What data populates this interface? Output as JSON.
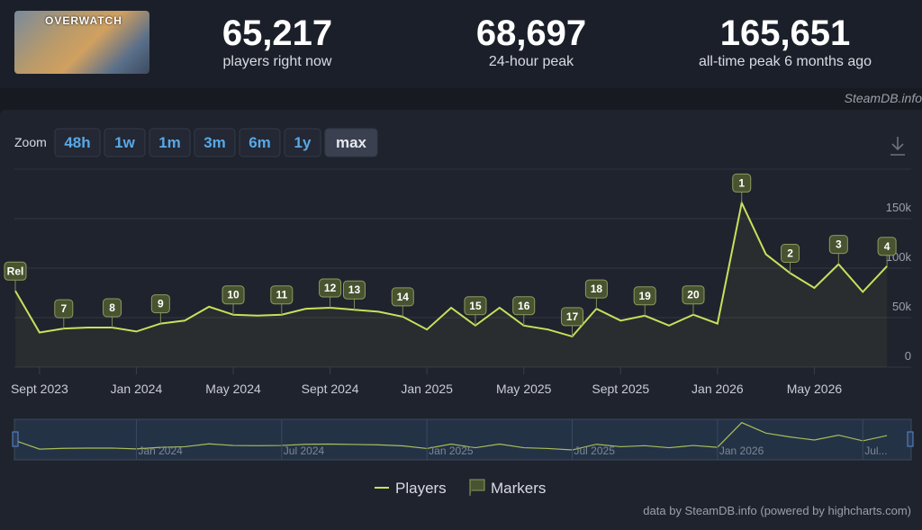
{
  "header": {
    "game_logo": "OVERWATCH",
    "stats": [
      {
        "value": "65,217",
        "label": "players right now"
      },
      {
        "value": "68,697",
        "label": "24-hour peak"
      },
      {
        "value": "165,651",
        "label": "all-time peak 6 months ago"
      }
    ],
    "source": "SteamDB.info"
  },
  "toolbar": {
    "zoom_label": "Zoom",
    "buttons": [
      "48h",
      "1w",
      "1m",
      "3m",
      "6m",
      "1y",
      "max"
    ],
    "active": "max"
  },
  "chart_data": {
    "type": "line",
    "x": [
      "2023-08",
      "2023-09",
      "2023-10",
      "2023-11",
      "2023-12",
      "2024-01",
      "2024-02",
      "2024-03",
      "2024-04",
      "2024-05",
      "2024-06",
      "2024-07",
      "2024-08",
      "2024-09",
      "2024-10",
      "2024-11",
      "2024-12",
      "2025-01",
      "2025-02",
      "2025-03",
      "2025-04",
      "2025-05",
      "2025-06",
      "2025-07",
      "2025-08",
      "2025-09",
      "2025-10",
      "2025-11",
      "2025-12",
      "2026-01",
      "2026-02",
      "2026-03",
      "2026-04",
      "2026-05",
      "2026-06",
      "2026-07",
      "2026-08"
    ],
    "series": [
      {
        "name": "Players",
        "color": "#c8e05c",
        "values": [
          77000,
          35000,
          39000,
          40000,
          40000,
          36000,
          44000,
          47000,
          61000,
          53000,
          52000,
          53000,
          59000,
          60000,
          58000,
          56000,
          51000,
          38000,
          60000,
          42000,
          60000,
          42000,
          38000,
          31000,
          59000,
          47000,
          52000,
          42000,
          53000,
          44000,
          166000,
          114000,
          95000,
          80000,
          104000,
          76000,
          102000
        ]
      }
    ],
    "markers_name": "Markers",
    "markers": [
      {
        "label": "Rel",
        "x": "2023-08"
      },
      {
        "label": "7",
        "x": "2023-10"
      },
      {
        "label": "8",
        "x": "2023-12"
      },
      {
        "label": "9",
        "x": "2024-02"
      },
      {
        "label": "10",
        "x": "2024-05"
      },
      {
        "label": "11",
        "x": "2024-07"
      },
      {
        "label": "12",
        "x": "2024-09"
      },
      {
        "label": "13",
        "x": "2024-10"
      },
      {
        "label": "14",
        "x": "2024-12"
      },
      {
        "label": "15",
        "x": "2025-03"
      },
      {
        "label": "16",
        "x": "2025-05"
      },
      {
        "label": "17",
        "x": "2025-07"
      },
      {
        "label": "18",
        "x": "2025-08"
      },
      {
        "label": "19",
        "x": "2025-10"
      },
      {
        "label": "20",
        "x": "2025-12"
      },
      {
        "label": "1",
        "x": "2026-02"
      },
      {
        "label": "2",
        "x": "2026-04"
      },
      {
        "label": "3",
        "x": "2026-06"
      },
      {
        "label": "4",
        "x": "2026-08"
      }
    ],
    "xlim": [
      "2023-08",
      "2026-09"
    ],
    "xticks": [
      {
        "value": "2023-09",
        "label": "Sept 2023"
      },
      {
        "value": "2024-01",
        "label": "Jan 2024"
      },
      {
        "value": "2024-05",
        "label": "May 2024"
      },
      {
        "value": "2024-09",
        "label": "Sept 2024"
      },
      {
        "value": "2025-01",
        "label": "Jan 2025"
      },
      {
        "value": "2025-05",
        "label": "May 2025"
      },
      {
        "value": "2025-09",
        "label": "Sept 2025"
      },
      {
        "value": "2026-01",
        "label": "Jan 2026"
      },
      {
        "value": "2026-05",
        "label": "May 2026"
      }
    ],
    "ylim": [
      0,
      200000
    ],
    "yticks": [
      0,
      {
        "value": 50000,
        "label": "50k"
      },
      {
        "value": 100000,
        "label": "100k"
      },
      {
        "value": 150000,
        "label": "150k"
      }
    ],
    "grid": true,
    "navigator_ticks": [
      {
        "value": "2024-01",
        "label": "Jan 2024"
      },
      {
        "value": "2024-07",
        "label": "Jul 2024"
      },
      {
        "value": "2025-01",
        "label": "Jan 2025"
      },
      {
        "value": "2025-07",
        "label": "Jul 2025"
      },
      {
        "value": "2026-01",
        "label": "Jan 2026"
      },
      {
        "value": "2026-07",
        "label": "Jul..."
      }
    ]
  },
  "footer": "data by SteamDB.info (powered by highcharts.com)"
}
